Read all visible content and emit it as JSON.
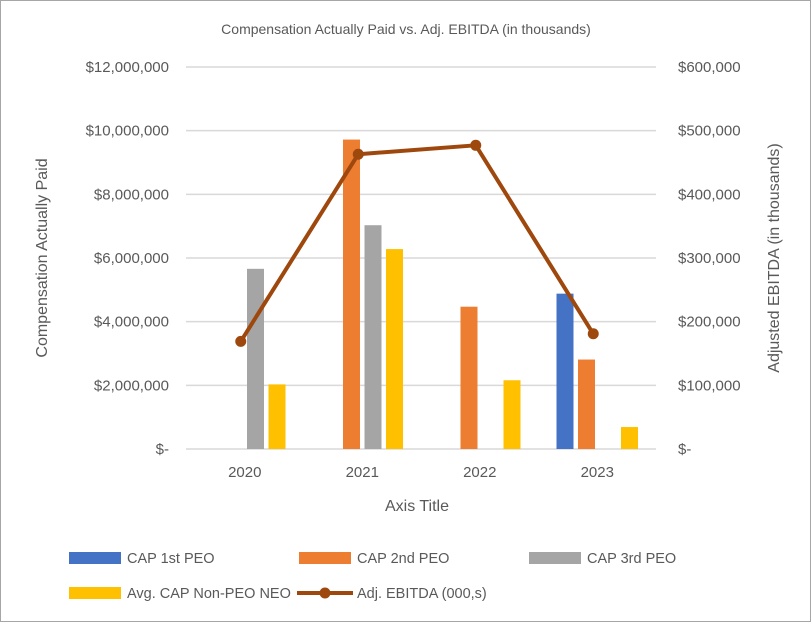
{
  "chart_data": {
    "type": "bar",
    "title": "Compensation Actually Paid vs. Adj. EBITDA (in thousands)",
    "xlabel": "Axis Title",
    "ylabel": "Compensation Actually Paid",
    "y2label": "Adjusted EBITDA (in thousands)",
    "categories": [
      "2020",
      "2021",
      "2022",
      "2023"
    ],
    "ylim": [
      0,
      12000000
    ],
    "y2lim": [
      0,
      600000
    ],
    "yticks": [
      "$-",
      "$2,000,000",
      "$4,000,000",
      "$6,000,000",
      "$8,000,000",
      "$10,000,000",
      "$12,000,000"
    ],
    "y2ticks": [
      "$-",
      "$100,000",
      "$200,000",
      "$300,000",
      "$400,000",
      "$500,000",
      "$600,000"
    ],
    "grid": true,
    "legend_position": "bottom",
    "series": [
      {
        "name": "CAP 1st PEO",
        "type": "bar",
        "color": "#4472C4",
        "values": [
          null,
          null,
          null,
          4880000
        ]
      },
      {
        "name": "CAP 2nd PEO",
        "type": "bar",
        "color": "#ED7D31",
        "values": [
          null,
          9720000,
          4470000,
          2810000
        ]
      },
      {
        "name": "CAP 3rd PEO",
        "type": "bar",
        "color": "#A5A5A5",
        "values": [
          5660000,
          7030000,
          null,
          null
        ]
      },
      {
        "name": "Avg. CAP Non-PEO NEO",
        "type": "bar",
        "color": "#FFC000",
        "values": [
          2030000,
          6280000,
          2160000,
          690000
        ]
      },
      {
        "name": "Adj. EBITDA (000,s)",
        "type": "line",
        "axis": "right",
        "color": "#9E480E",
        "values": [
          169000,
          463000,
          477000,
          181000
        ]
      }
    ]
  }
}
